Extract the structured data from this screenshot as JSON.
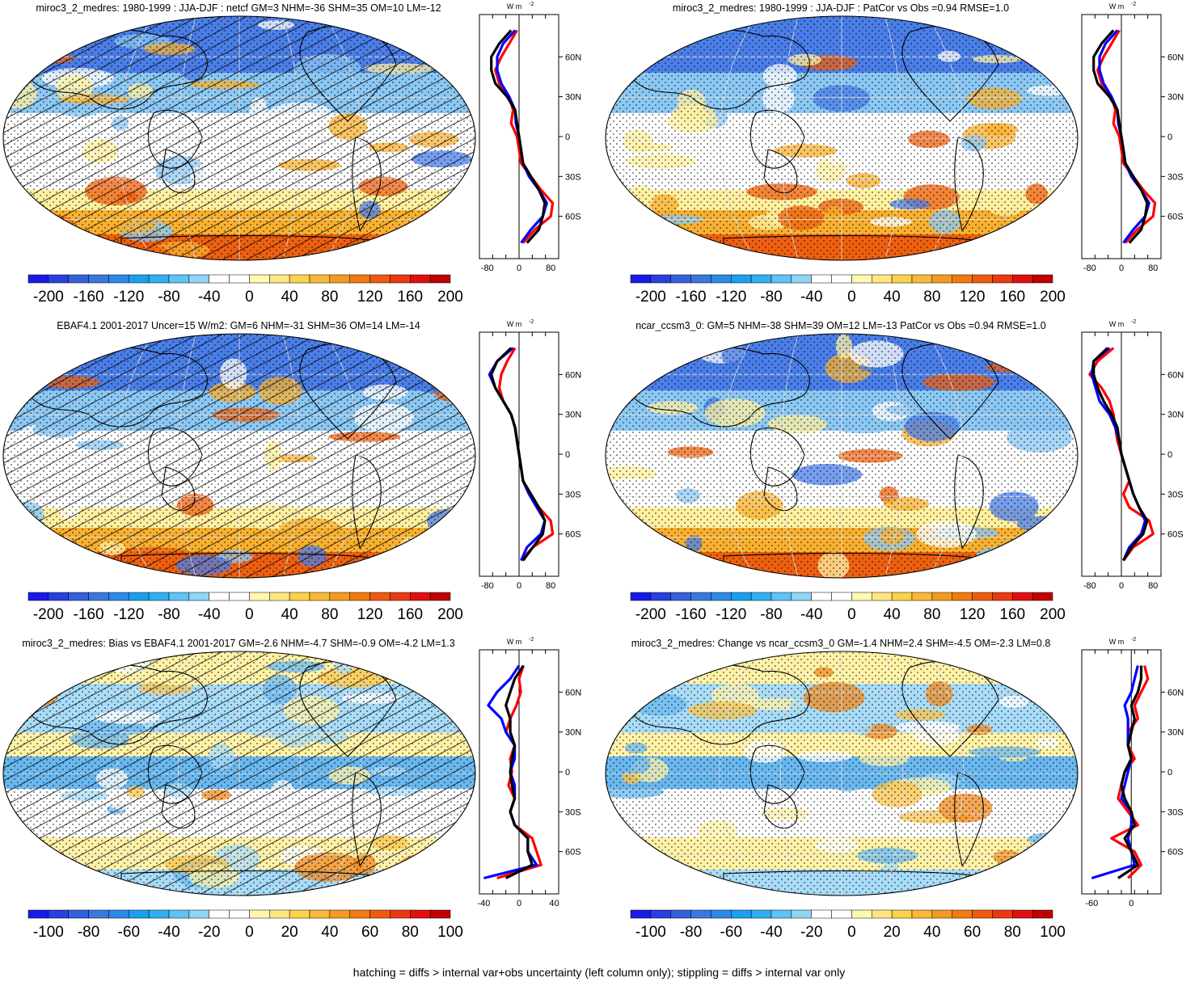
{
  "footer": "hatching = diffs > internal var+obs uncertainty (left column only); stippling = diffs > internal var only",
  "colors": {
    "model_line": "#ff0000",
    "obs_line": "#0000ff",
    "ref_line": "#000000",
    "map_background": "#ffffff",
    "land_outline": "#000000"
  },
  "colorbars": {
    "full": {
      "colors": [
        "#1a1ae6",
        "#2a3fe0",
        "#3560dc",
        "#3a78e0",
        "#2a8ae8",
        "#1aa0f0",
        "#30b0f2",
        "#60c3f4",
        "#90d4f6",
        "#ffffff",
        "#ffffff",
        "#fff8b0",
        "#ffe680",
        "#fcd24a",
        "#f8b838",
        "#f59a20",
        "#f07b10",
        "#ee5a10",
        "#ea3a10",
        "#e01010",
        "#c00000"
      ],
      "labels": [
        "-200",
        "-160",
        "-120",
        "-80",
        "-40",
        "0",
        "40",
        "80",
        "120",
        "160",
        "200"
      ]
    },
    "diff": {
      "colors": [
        "#1a1ae6",
        "#2a3fe0",
        "#3560dc",
        "#3a78e0",
        "#2a8ae8",
        "#1aa0f0",
        "#30b0f2",
        "#60c3f4",
        "#90d4f6",
        "#ffffff",
        "#ffffff",
        "#fff8b0",
        "#ffe680",
        "#fcd24a",
        "#f8b838",
        "#f59a20",
        "#f07b10",
        "#ee5a10",
        "#ea3a10",
        "#e01010",
        "#c00000"
      ],
      "labels": [
        "-100",
        "-80",
        "-60",
        "-40",
        "-20",
        "0",
        "20",
        "40",
        "60",
        "80",
        "100"
      ]
    }
  },
  "lat_labels": [
    "60N",
    "30N",
    "0",
    "30S",
    "60S"
  ],
  "unit_label": "W m",
  "unit_exp": "-2",
  "panels": [
    {
      "title": "miroc3_2_medres: 1980-1999 : JJA-DJF : netcf GM=3 NHM=-36 SHM=35 OM=10 LM=-12",
      "colorbar": "full",
      "hatching": true,
      "map_field": "seasonal",
      "profile_xticks": [
        "-80",
        "0",
        "80"
      ]
    },
    {
      "title": "miroc3_2_medres: 1980-1999 : JJA-DJF : PatCor vs Obs =0.94 RMSE=1.0",
      "colorbar": "full",
      "hatching": false,
      "map_field": "seasonal",
      "profile_xticks": [
        "-80",
        "0",
        "80"
      ]
    },
    {
      "title": "EBAF4.1 2001-2017 Uncer=15 W/m2: GM=6 NHM=-31 SHM=36 OM=14 LM=-14",
      "colorbar": "full",
      "hatching": true,
      "map_field": "seasonal",
      "profile_xticks": [
        "-80",
        "0",
        "80"
      ]
    },
    {
      "title": "ncar_ccsm3_0: GM=5 NHM=-38 SHM=39 OM=12 LM=-13 PatCor vs Obs =0.94 RMSE=1.0",
      "colorbar": "full",
      "hatching": false,
      "map_field": "seasonal",
      "profile_xticks": [
        "-80",
        "0",
        "80"
      ]
    },
    {
      "title": "miroc3_2_medres: Bias vs EBAF4.1 2001-2017 GM=-2.6 NHM=-4.7 SHM=-0.9 OM=-4.2 LM=1.3",
      "colorbar": "diff",
      "hatching": true,
      "map_field": "difference",
      "profile_xticks": [
        "-40",
        "0",
        "40"
      ]
    },
    {
      "title": "miroc3_2_medres: Change vs ncar_ccsm3_0 GM=-1.4 NHM=2.4 SHM=-4.5 OM=-2.3 LM=0.8",
      "colorbar": "diff",
      "hatching": false,
      "map_field": "difference",
      "profile_xticks": [
        "-60",
        "0"
      ]
    }
  ],
  "chart_data": [
    {
      "type": "heatmap",
      "title": "miroc3_2_medres: 1980-1999 : JJA-DJF : netcf GM=3 NHM=-36 SHM=35 OM=10 LM=-12",
      "zlim": [
        -200,
        200
      ],
      "stats": {
        "GM": 3,
        "NHM": -36,
        "SHM": 35,
        "OM": 10,
        "LM": -12
      },
      "zonal_profile": {
        "type": "line",
        "lat": [
          80,
          70,
          60,
          50,
          40,
          30,
          20,
          10,
          0,
          -10,
          -20,
          -30,
          -40,
          -50,
          -60,
          -70,
          -80
        ],
        "series": [
          {
            "values": [
              -5,
              -25,
              -45,
              -60,
              -50,
              -25,
              -15,
              -20,
              -5,
              0,
              5,
              30,
              55,
              85,
              80,
              40,
              10
            ]
          },
          {
            "values": [
              -10,
              -40,
              -55,
              -55,
              -45,
              -25,
              -10,
              -8,
              0,
              5,
              10,
              25,
              50,
              70,
              60,
              30,
              5
            ]
          },
          {
            "values": [
              -20,
              -50,
              -70,
              -70,
              -60,
              -30,
              -10,
              -5,
              0,
              5,
              10,
              30,
              50,
              65,
              60,
              50,
              20
            ]
          }
        ],
        "xlim": [
          -100,
          100
        ]
      }
    },
    {
      "type": "heatmap",
      "title": "miroc3_2_medres: 1980-1999 : JJA-DJF : PatCor vs Obs =0.94 RMSE=1.0",
      "zlim": [
        -200,
        200
      ],
      "stats": {
        "PatCor": 0.94,
        "RMSE": 1.0
      },
      "zonal_profile": {
        "type": "line",
        "lat": [
          80,
          70,
          60,
          50,
          40,
          30,
          20,
          10,
          0,
          -10,
          -20,
          -30,
          -40,
          -50,
          -60,
          -70,
          -80
        ],
        "series": [
          {
            "values": [
              -5,
              -25,
              -45,
              -60,
              -50,
              -25,
              -15,
              -20,
              -5,
              0,
              5,
              30,
              55,
              85,
              80,
              40,
              10
            ]
          },
          {
            "values": [
              -10,
              -40,
              -55,
              -55,
              -45,
              -25,
              -10,
              -8,
              0,
              5,
              10,
              25,
              50,
              70,
              60,
              30,
              5
            ]
          },
          {
            "values": [
              -20,
              -50,
              -70,
              -70,
              -60,
              -30,
              -10,
              -5,
              0,
              5,
              10,
              30,
              50,
              65,
              60,
              50,
              20
            ]
          }
        ],
        "xlim": [
          -100,
          100
        ]
      }
    },
    {
      "type": "heatmap",
      "title": "EBAF4.1 2001-2017 Uncer=15 W/m2: GM=6 NHM=-31 SHM=36 OM=14 LM=-14",
      "zlim": [
        -200,
        200
      ],
      "stats": {
        "GM": 6,
        "NHM": -31,
        "SHM": 36,
        "OM": 14,
        "LM": -14
      },
      "zonal_profile": {
        "type": "line",
        "lat": [
          80,
          70,
          60,
          50,
          40,
          30,
          20,
          10,
          0,
          -10,
          -20,
          -30,
          -40,
          -50,
          -60,
          -70,
          -80
        ],
        "series": [
          {
            "values": [
              -10,
              -30,
              -45,
              -50,
              -40,
              -20,
              -10,
              -5,
              0,
              5,
              10,
              25,
              50,
              80,
              85,
              35,
              5
            ]
          },
          {
            "values": [
              -15,
              -55,
              -75,
              -60,
              -40,
              -20,
              -10,
              -5,
              0,
              5,
              10,
              25,
              45,
              65,
              55,
              20,
              5
            ]
          },
          {
            "values": [
              -20,
              -55,
              -70,
              -60,
              -40,
              -20,
              -10,
              -5,
              0,
              5,
              10,
              30,
              50,
              65,
              60,
              35,
              10
            ]
          }
        ],
        "xlim": [
          -100,
          100
        ]
      }
    },
    {
      "type": "heatmap",
      "title": "ncar_ccsm3_0: GM=5 NHM=-38 SHM=39 OM=12 LM=-13 PatCor vs Obs =0.94 RMSE=1.0",
      "zlim": [
        -200,
        200
      ],
      "stats": {
        "GM": 5,
        "NHM": -38,
        "SHM": 39,
        "OM": 12,
        "LM": -13,
        "PatCor": 0.94,
        "RMSE": 1.0
      },
      "zonal_profile": {
        "type": "line",
        "lat": [
          80,
          70,
          60,
          50,
          40,
          30,
          20,
          10,
          0,
          -10,
          -20,
          -30,
          -40,
          -50,
          -60,
          -70,
          -80
        ],
        "series": [
          {
            "values": [
              -20,
              -60,
              -80,
              -50,
              -30,
              -20,
              -15,
              -10,
              0,
              10,
              20,
              5,
              20,
              70,
              80,
              30,
              5
            ]
          },
          {
            "values": [
              -30,
              -70,
              -75,
              -65,
              -55,
              -30,
              -15,
              -5,
              0,
              10,
              20,
              30,
              45,
              60,
              50,
              20,
              5
            ]
          },
          {
            "values": [
              -35,
              -70,
              -70,
              -60,
              -45,
              -25,
              -10,
              -5,
              0,
              10,
              20,
              30,
              45,
              65,
              55,
              25,
              5
            ]
          }
        ],
        "xlim": [
          -100,
          100
        ]
      }
    },
    {
      "type": "heatmap",
      "title": "miroc3_2_medres: Bias vs EBAF4.1 2001-2017 GM=-2.6 NHM=-4.7 SHM=-0.9 OM=-4.2 LM=1.3",
      "zlim": [
        -100,
        100
      ],
      "stats": {
        "GM": -2.6,
        "NHM": -4.7,
        "SHM": -0.9,
        "OM": -4.2,
        "LM": 1.3
      },
      "zonal_profile": {
        "type": "line",
        "lat": [
          80,
          70,
          60,
          50,
          40,
          30,
          20,
          10,
          0,
          -10,
          -20,
          -30,
          -40,
          -50,
          -60,
          -70,
          -80
        ],
        "series": [
          {
            "values": [
              5,
              0,
              2,
              -3,
              -10,
              -15,
              -5,
              -10,
              -8,
              -12,
              -5,
              -10,
              -5,
              15,
              20,
              25,
              -25
            ]
          },
          {
            "values": [
              0,
              -10,
              -25,
              -35,
              -20,
              -15,
              -5,
              -5,
              -10,
              -5,
              -5,
              -10,
              -5,
              10,
              10,
              20,
              -40
            ]
          },
          {
            "values": [
              5,
              -5,
              -10,
              -15,
              -10,
              -10,
              -5,
              -8,
              -10,
              -8,
              -5,
              -10,
              -5,
              10,
              10,
              15,
              -15
            ]
          }
        ],
        "xlim": [
          -45,
          45
        ]
      }
    },
    {
      "type": "heatmap",
      "title": "miroc3_2_medres: Change vs ncar_ccsm3_0 GM=-1.4 NHM=2.4 SHM=-4.5 OM=-2.3 LM=0.8",
      "zlim": [
        -100,
        100
      ],
      "stats": {
        "GM": -1.4,
        "NHM": 2.4,
        "SHM": -4.5,
        "OM": -2.3,
        "LM": 0.8
      },
      "zonal_profile": {
        "type": "line",
        "lat": [
          80,
          70,
          60,
          50,
          40,
          30,
          20,
          10,
          0,
          -10,
          -20,
          -30,
          -40,
          -50,
          -60,
          -70,
          -80
        ],
        "series": [
          {
            "values": [
              20,
              25,
              15,
              5,
              10,
              -5,
              -5,
              5,
              -10,
              -15,
              -20,
              -5,
              10,
              -30,
              5,
              15,
              -5
            ]
          },
          {
            "values": [
              10,
              5,
              0,
              -10,
              -5,
              -5,
              -5,
              0,
              -5,
              -10,
              -15,
              0,
              0,
              -5,
              0,
              5,
              -60
            ]
          },
          {
            "values": [
              15,
              15,
              10,
              0,
              5,
              0,
              -5,
              0,
              -10,
              -15,
              -10,
              0,
              5,
              -10,
              0,
              10,
              -20
            ]
          }
        ],
        "xlim": [
          -75,
          45
        ]
      }
    }
  ]
}
